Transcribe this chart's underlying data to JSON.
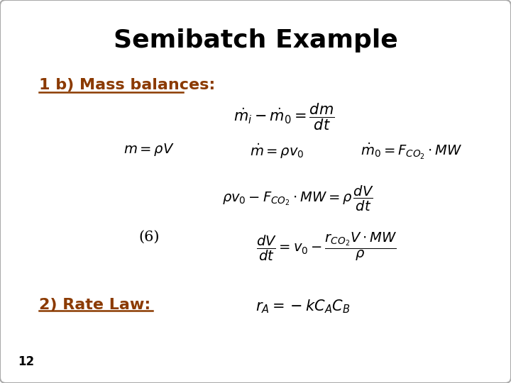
{
  "title": "Semibatch Example",
  "title_fontsize": 26,
  "title_color": "#000000",
  "background_color": "#ffffff",
  "border_color": "#aaaaaa",
  "heading1_text": "1 b) Mass balances:",
  "heading1_color": "#8B3A00",
  "heading1_fontsize": 16,
  "heading2_text": "2) Rate Law:",
  "heading2_color": "#8B3A00",
  "heading2_fontsize": 16,
  "slide_number": "12",
  "eq1": "$\\dot{m}_i - \\dot{m}_0 = \\dfrac{dm}{dt}$",
  "eq2a": "$m = \\rho V$",
  "eq2b": "$\\dot{m} = \\rho v_0$",
  "eq2c": "$\\dot{m}_0 = F_{CO_2} \\cdot MW$",
  "eq3": "$\\rho v_0 - F_{CO_2} \\cdot MW = \\rho\\, \\dfrac{dV}{dt}$",
  "eq4_label": "(6)",
  "eq4": "$\\dfrac{dV}{dt} = v_0 - \\dfrac{r_{CO_2} V \\cdot MW}{\\rho}$",
  "eq5": "$r_A = -kC_A C_B$",
  "math_color": "#000000"
}
